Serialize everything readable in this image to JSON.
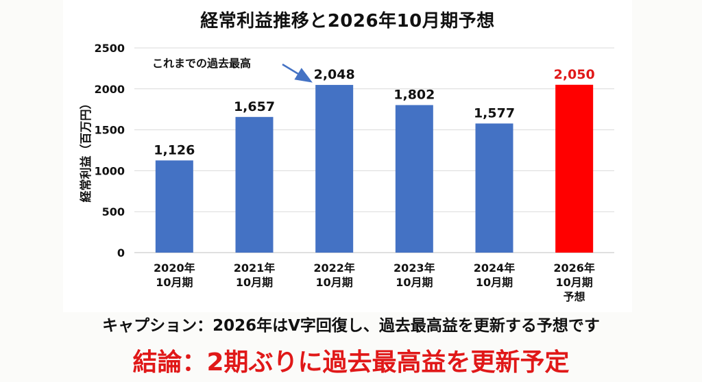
{
  "chart_data": {
    "type": "bar",
    "title": "経常利益推移と2026年10月期予想",
    "ylabel": "経常利益（百万円）",
    "xlabel": "",
    "ylim": [
      0,
      2500
    ],
    "yticks": [
      0,
      500,
      1000,
      1500,
      2000,
      2500
    ],
    "grid": true,
    "categories": [
      [
        "2020年",
        "10月期"
      ],
      [
        "2021年",
        "10月期"
      ],
      [
        "2022年",
        "10月期"
      ],
      [
        "2023年",
        "10月期"
      ],
      [
        "2024年",
        "10月期"
      ],
      [
        "2026年",
        "10月期",
        "予想"
      ]
    ],
    "values": [
      1126,
      1657,
      2048,
      1802,
      1577,
      2050
    ],
    "value_labels": [
      "1,126",
      "1,657",
      "2,048",
      "1,802",
      "1,577",
      "2,050"
    ],
    "bar_colors": [
      "#4472c4",
      "#4472c4",
      "#4472c4",
      "#4472c4",
      "#4472c4",
      "#ff0000"
    ],
    "label_colors": [
      "#111111",
      "#111111",
      "#111111",
      "#111111",
      "#111111",
      "#e01818"
    ],
    "annotation": {
      "text": "これまでの過去最高",
      "target_index": 2,
      "arrow_color": "#4472c4"
    }
  },
  "caption": "キャプション：2026年はV字回復し、過去最高益を更新する予想です",
  "conclusion": "結論：2期ぶりに過去最高益を更新予定"
}
